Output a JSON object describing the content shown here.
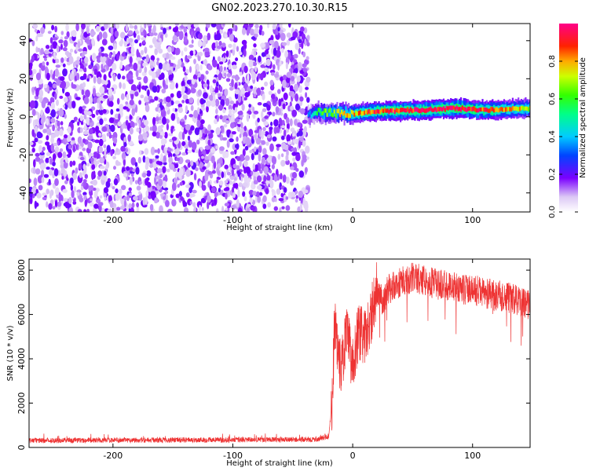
{
  "figure": {
    "title": "GN02.2023.270.10.30.R15"
  },
  "colors": {
    "snr_line": "#ee3333",
    "axis": "#000000"
  },
  "chart_data": [
    {
      "type": "heatmap",
      "title": "",
      "xlabel": "Height of straight line (km)",
      "ylabel": "Frequency (Hz)",
      "xlim": [
        -270,
        148
      ],
      "ylim": [
        -50,
        49
      ],
      "xticks": [
        -200,
        -100,
        0,
        100
      ],
      "xtick_labels": [
        "-200",
        "-100",
        "0",
        "100"
      ],
      "yticks": [
        -40,
        -20,
        0,
        20,
        40
      ],
      "ytick_labels": [
        "-40",
        "-20",
        "0",
        "20",
        "40"
      ],
      "noise_region_x": [
        -270,
        -37
      ],
      "signal_band": [
        {
          "x": -37,
          "f": 0.5,
          "amp": 0.35
        },
        {
          "x": -30,
          "f": 2.5,
          "amp": 0.55
        },
        {
          "x": -15,
          "f": 2.0,
          "amp": 0.7
        },
        {
          "x": 0,
          "f": 1.5,
          "amp": 0.75
        },
        {
          "x": 20,
          "f": 3.0,
          "amp": 0.85
        },
        {
          "x": 60,
          "f": 3.5,
          "amp": 0.9
        },
        {
          "x": 85,
          "f": 4.5,
          "amp": 0.95
        },
        {
          "x": 110,
          "f": 3.5,
          "amp": 0.85
        },
        {
          "x": 148,
          "f": 4.5,
          "amp": 0.7
        }
      ],
      "colorbar": {
        "label": "Normalized spectral amplitude",
        "range": [
          0,
          1
        ],
        "ticks": [
          0.0,
          0.2,
          0.4,
          0.6,
          0.8
        ],
        "tick_labels": [
          "0.0",
          "0.2",
          "0.4",
          "0.6",
          "0.8"
        ]
      }
    },
    {
      "type": "line",
      "title": "",
      "xlabel": "Height of straight line (km)",
      "ylabel": "SNR (10 * v/v)",
      "xlim": [
        -270,
        148
      ],
      "ylim": [
        0,
        8500
      ],
      "xticks": [
        -200,
        -100,
        0,
        100
      ],
      "xtick_labels": [
        "-200",
        "-100",
        "0",
        "100"
      ],
      "yticks": [
        0,
        2000,
        4000,
        6000,
        8000
      ],
      "ytick_labels": [
        "0",
        "2000",
        "4000",
        "6000",
        "8000"
      ],
      "x": [
        -270,
        -200,
        -100,
        -30,
        -20,
        -17,
        -15,
        -12,
        -10,
        -5,
        0,
        5,
        10,
        15,
        20,
        25,
        30,
        40,
        50,
        60,
        70,
        80,
        90,
        100,
        110,
        120,
        130,
        140,
        148
      ],
      "y": [
        300,
        320,
        330,
        350,
        500,
        2200,
        5800,
        4300,
        3500,
        5100,
        3800,
        5300,
        4900,
        5800,
        7200,
        6800,
        7300,
        7600,
        7800,
        7700,
        7500,
        7450,
        7300,
        7250,
        7100,
        7000,
        6900,
        6700,
        6600
      ]
    }
  ]
}
